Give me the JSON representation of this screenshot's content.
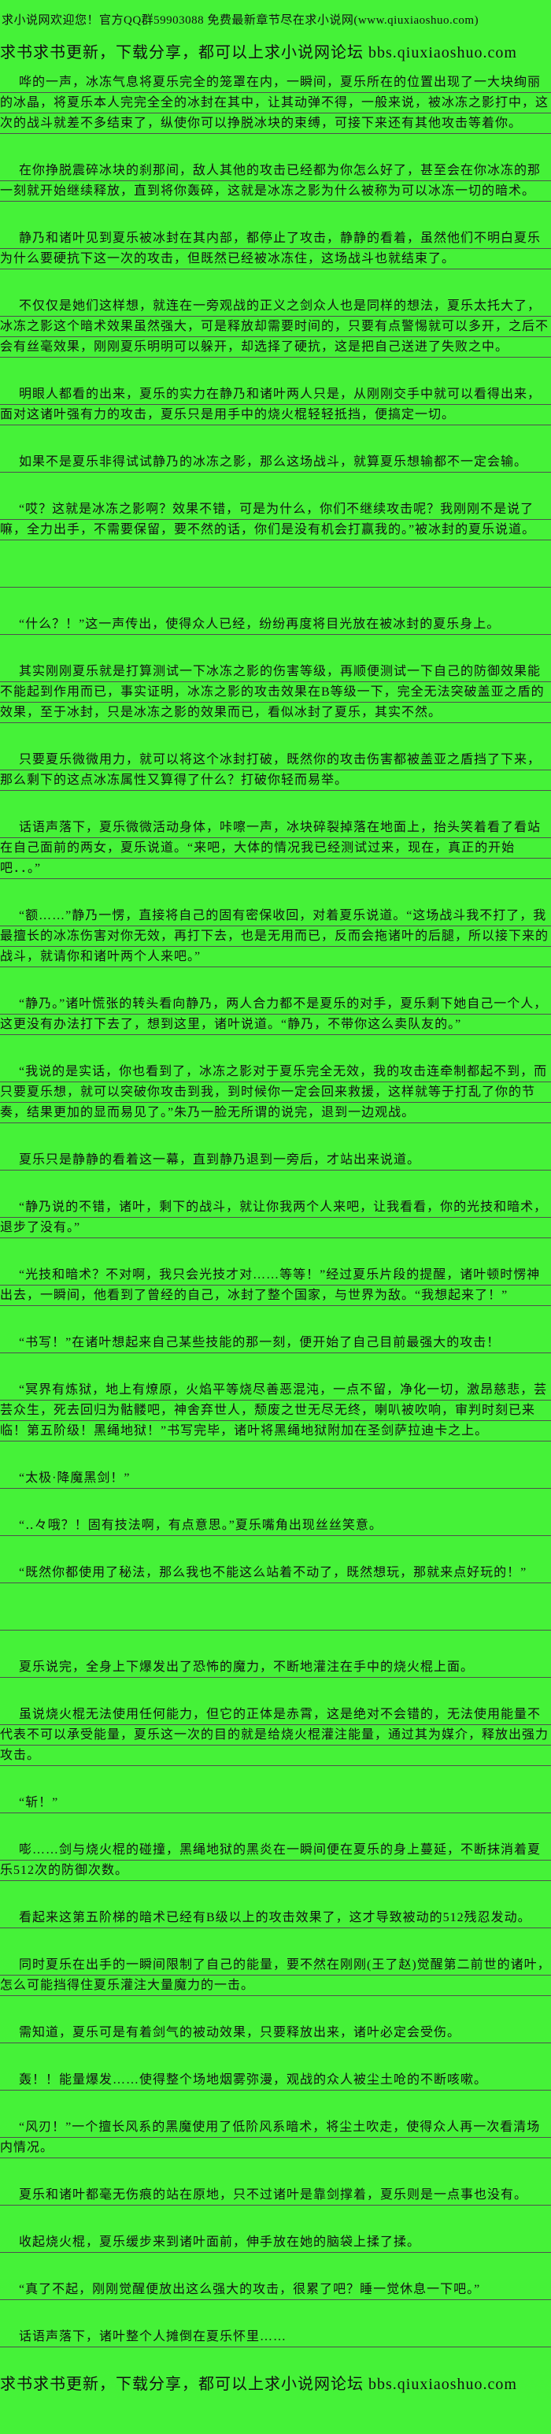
{
  "page": {
    "background_color": "#45f238",
    "text_color": "#121212",
    "underline_color": "#4f4f4f"
  },
  "header": {
    "welcome_line": "求小说网欢迎您！官方QQ群59903088 免费最新章节尽在求小说网(www.qiuxiaoshuo.com)",
    "promo_line": "求书求书更新，下载分享，都可以上求小说网论坛 bbs.qiuxiaoshuo.com"
  },
  "content": {
    "paragraphs": [
      {
        "text": "哗的一声，冰冻气息将夏乐完全的笼罩在内，一瞬间，夏乐所在的位置出现了一大块绚丽的冰晶，将夏乐本人完完全全的冰封在其中，让其动弹不得，一般来说，被冰冻之影打中，这次的战斗就差不多结束了，纵使你可以挣脱冰块的束缚，可接下来还有其他攻击等着你。"
      },
      {
        "text": "在你挣脱震碎冰块的刹那间，敌人其他的攻击已经都为你怎么好了，甚至会在你冰冻的那一刻就开始继续释放，直到将你轰碎，这就是冰冻之影为什么被称为可以冰冻一切的暗术。"
      },
      {
        "text": "静乃和诸叶见到夏乐被冰封在其内部，都停止了攻击，静静的看着，虽然他们不明白夏乐为什么要硬抗下这一次的攻击，但既然已经被冰冻住，这场战斗也就结束了。"
      },
      {
        "text": "不仅仅是她们这样想，就连在一旁观战的正义之剑众人也是同样的想法，夏乐太托大了，冰冻之影这个暗术效果虽然强大，可是释放却需要时间的，只要有点警惕就可以多开，之后不会有丝毫效果，刚刚夏乐明明可以躲开，却选择了硬抗，这是把自己送进了失败之中。"
      },
      {
        "text": "明眼人都看的出来，夏乐的实力在静乃和诸叶两人只是，从刚刚交手中就可以看得出来，面对这诸叶强有力的攻击，夏乐只是用手中的烧火棍轻轻抵挡，便搞定一切。"
      },
      {
        "text": "如果不是夏乐非得试试静乃的冰冻之影，那么这场战斗，就算夏乐想输都不一定会输。"
      },
      {
        "text": "“哎？这就是冰冻之影啊？效果不错，可是为什么，你们不继续攻击呢？我刚刚不是说了嘛，全力出手，不需要保留，要不然的话，你们是没有机会打赢我的。”被冰封的夏乐说道。"
      },
      {
        "blank": true,
        "text": ""
      },
      {
        "text": "“什么？！”这一声传出，使得众人已经，纷纷再度将目光放在被冰封的夏乐身上。"
      },
      {
        "text": "其实刚刚夏乐就是打算测试一下冰冻之影的伤害等级，再顺便测试一下自己的防御效果能不能起到作用而已，事实证明，冰冻之影的攻击效果在B等级一下，完全无法突破盖亚之盾的效果，至于冰封，只是冰冻之影的效果而已，看似冰封了夏乐，其实不然。"
      },
      {
        "text": "只要夏乐微微用力，就可以将这个冰封打破，既然你的攻击伤害都被盖亚之盾挡了下来，那么剩下的这点冰冻属性又算得了什么？打破你轻而易举。"
      },
      {
        "text": "话语声落下，夏乐微微活动身体，咔嚓一声，冰块碎裂掉落在地面上，抬头笑着看了看站在自己面前的两女，夏乐说道。“来吧，大体的情况我已经测试过来，现在，真正的开始吧．．。”"
      },
      {
        "text": "“额……”静乃一愣，直接将自己的固有密保收回，对着夏乐说道。“这场战斗我不打了，我最擅长的冰冻伤害对你无效，再打下去，也是无用而已，反而会拖诸叶的后腿，所以接下来的战斗，就请你和诸叶两个人来吧。”"
      },
      {
        "text": "“静乃。”诸叶慌张的转头看向静乃，两人合力都不是夏乐的对手，夏乐剩下她自己一个人，这更没有办法打下去了，想到这里，诸叶说道。“静乃，不带你这么卖队友的。”"
      },
      {
        "text": "“我说的是实话，你也看到了，冰冻之影对于夏乐完全无效，我的攻击连牵制都起不到，而只要夏乐想，就可以突破你攻击到我，到时候你一定会回来救援，这样就等于打乱了你的节奏，结果更加的显而易见了。”朱乃一脸无所谓的说完，退到一边观战。"
      },
      {
        "text": "夏乐只是静静的看着这一幕，直到静乃退到一旁后，才站出来说道。"
      },
      {
        "text": "“静乃说的不错，诸叶，剩下的战斗，就让你我两个人来吧，让我看看，你的光技和暗术，退步了没有。”"
      },
      {
        "text": "“光技和暗术？不对啊，我只会光技才对……等等！”经过夏乐片段的提醒，诸叶顿时愣神出去，一瞬间，他看到了曾经的自己，冰封了整个国家，与世界为敌。“我想起来了！”"
      },
      {
        "text": "“书写！”在诸叶想起来自己某些技能的那一刻，便开始了自己目前最强大的攻击！"
      },
      {
        "text": "“冥界有炼狱，地上有燎原，火焰平等烧尽善恶混沌，一点不留，净化一切，激昂慈悲，芸芸众生，死去回归为骷髅吧，神舍弃世人，颓废之世无尽无终，喇叭被吹响，审判时刻已来临！第五阶级！黑绳地狱！”书写完毕，诸叶将黑绳地狱附加在圣剑萨拉迪卡之上。"
      },
      {
        "text": "“太极·降魔黑剑！”"
      },
      {
        "text": "“‥々哦？！固有技法啊，有点意思。”夏乐嘴角出现丝丝笑意。"
      },
      {
        "text": "“既然你都使用了秘法，那么我也不能这么站着不动了，既然想玩，那就来点好玩的！”"
      },
      {
        "blank": true,
        "text": ""
      },
      {
        "text": "夏乐说完，全身上下爆发出了恐怖的魔力，不断地灌注在手中的烧火棍上面。"
      },
      {
        "text": "虽说烧火棍无法使用任何能力，但它的正体是赤霄，这是绝对不会错的，无法使用能量不代表不可以承受能量，夏乐这一次的目的就是给烧火棍灌注能量，通过其为媒介，释放出强力攻击。"
      },
      {
        "text": "“斩！”"
      },
      {
        "text": "嘭……剑与烧火棍的碰撞，黑绳地狱的黑炎在一瞬间便在夏乐的身上蔓延，不断抹消着夏乐512次的防御次数。"
      },
      {
        "text": "看起来这第五阶梯的暗术已经有B级以上的攻击效果了，这才导致被动的512残忍发动。"
      },
      {
        "text": "同时夏乐在出手的一瞬间限制了自己的能量，要不然在刚刚(王了赵)觉醒第二前世的诸叶，怎么可能挡得住夏乐灌注大量魔力的一击。"
      },
      {
        "text": "需知道，夏乐可是有着剑气的被动效果，只要释放出来，诸叶必定会受伤。"
      },
      {
        "text": "轰！！能量爆发……使得整个场地烟雾弥漫，观战的众人被尘土呛的不断咳嗽。"
      },
      {
        "text": "“风刃！”一个擅长风系的黑魔使用了低阶风系暗术，将尘土吹走，使得众人再一次看清场内情况。"
      },
      {
        "text": "夏乐和诸叶都毫无伤痕的站在原地，只不过诸叶是靠剑撑着，夏乐则是一点事也没有。"
      },
      {
        "text": "收起烧火棍，夏乐缓步来到诸叶面前，伸手放在她的脑袋上揉了揉。"
      },
      {
        "text": "“真了不起，刚刚觉醒便放出这么强大的攻击，很累了吧？睡一觉休息一下吧。”"
      },
      {
        "text": "话语声落下，诸叶整个人摊倒在夏乐怀里……"
      }
    ]
  },
  "footer": {
    "promo_line": "求书求书更新，下载分享，都可以上求小说网论坛 bbs.qiuxiaoshuo.com"
  }
}
